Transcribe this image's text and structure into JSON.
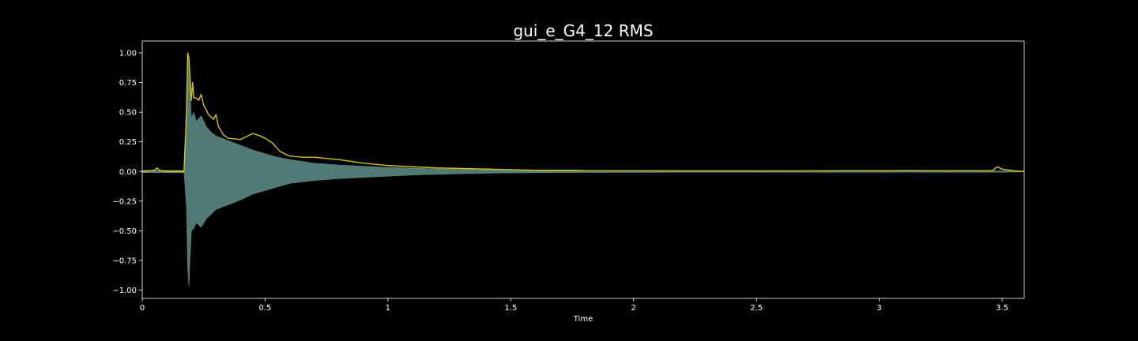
{
  "chart_data": {
    "type": "line",
    "title": "gui_e_G4_12 RMS",
    "xlabel": "Time",
    "ylabel": "",
    "xlim": [
      0,
      3.59
    ],
    "ylim": [
      -1.07,
      1.1
    ],
    "grid": false,
    "x_ticks": [
      {
        "value": 0,
        "label": "0"
      },
      {
        "value": 0.5,
        "label": "0.5"
      },
      {
        "value": 1,
        "label": "1"
      },
      {
        "value": 1.5,
        "label": "1.5"
      },
      {
        "value": 2,
        "label": "2"
      },
      {
        "value": 2.5,
        "label": "2.5"
      },
      {
        "value": 3,
        "label": "3"
      },
      {
        "value": 3.5,
        "label": "3.5"
      }
    ],
    "y_ticks": [
      {
        "value": 1.0,
        "label": "1.00"
      },
      {
        "value": 0.75,
        "label": "0.75"
      },
      {
        "value": 0.5,
        "label": "0.50"
      },
      {
        "value": 0.25,
        "label": "0.25"
      },
      {
        "value": 0.0,
        "label": "0.00"
      },
      {
        "value": -0.25,
        "label": "−0.25"
      },
      {
        "value": -0.5,
        "label": "−0.50"
      },
      {
        "value": -0.75,
        "label": "−0.75"
      },
      {
        "value": -1.0,
        "label": "−1.00"
      }
    ],
    "series": [
      {
        "kind": "waveform-envelope",
        "color": "#5f8f88",
        "x": [
          0,
          0.1,
          0.17,
          0.18,
          0.185,
          0.19,
          0.195,
          0.2,
          0.21,
          0.22,
          0.24,
          0.26,
          0.28,
          0.3,
          0.35,
          0.4,
          0.45,
          0.5,
          0.55,
          0.6,
          0.7,
          0.8,
          0.9,
          1.0,
          1.1,
          1.2,
          1.3,
          1.4,
          1.5,
          1.7,
          2.0,
          2.5,
          3.0,
          3.5,
          3.59
        ],
        "upper": [
          0.01,
          0.01,
          0.01,
          0.3,
          0.92,
          0.97,
          0.65,
          0.45,
          0.5,
          0.42,
          0.47,
          0.38,
          0.33,
          0.3,
          0.26,
          0.22,
          0.18,
          0.15,
          0.12,
          0.1,
          0.07,
          0.055,
          0.045,
          0.035,
          0.028,
          0.022,
          0.017,
          0.013,
          0.01,
          0.008,
          0.006,
          0.005,
          0.005,
          0.005,
          0.003
        ],
        "lower": [
          -0.01,
          -0.01,
          -0.01,
          -0.3,
          -0.8,
          -0.97,
          -0.7,
          -0.5,
          -0.48,
          -0.43,
          -0.47,
          -0.4,
          -0.36,
          -0.32,
          -0.28,
          -0.24,
          -0.19,
          -0.16,
          -0.13,
          -0.1,
          -0.075,
          -0.06,
          -0.05,
          -0.04,
          -0.03,
          -0.024,
          -0.019,
          -0.015,
          -0.012,
          -0.009,
          -0.007,
          -0.006,
          -0.006,
          -0.006,
          -0.003
        ]
      },
      {
        "kind": "line",
        "color": "#d4c41a",
        "x": [
          0,
          0.05,
          0.06,
          0.07,
          0.1,
          0.17,
          0.18,
          0.185,
          0.19,
          0.2,
          0.205,
          0.21,
          0.22,
          0.23,
          0.24,
          0.25,
          0.27,
          0.29,
          0.3,
          0.31,
          0.33,
          0.35,
          0.4,
          0.43,
          0.45,
          0.48,
          0.5,
          0.53,
          0.56,
          0.6,
          0.65,
          0.7,
          0.75,
          0.8,
          0.9,
          1.0,
          1.2,
          1.4,
          1.6,
          1.77,
          1.8,
          2.0,
          2.2,
          2.5,
          2.8,
          3.0,
          3.1,
          3.3,
          3.46,
          3.48,
          3.5,
          3.55,
          3.59
        ],
        "y": [
          0.0,
          0.01,
          0.03,
          0.01,
          0.0,
          0.0,
          0.5,
          1.0,
          0.96,
          0.6,
          0.75,
          0.62,
          0.62,
          0.6,
          0.65,
          0.56,
          0.48,
          0.44,
          0.48,
          0.38,
          0.31,
          0.28,
          0.27,
          0.3,
          0.32,
          0.3,
          0.28,
          0.24,
          0.17,
          0.13,
          0.12,
          0.12,
          0.11,
          0.1,
          0.07,
          0.05,
          0.03,
          0.02,
          0.01,
          0.01,
          0.006,
          0.006,
          0.005,
          0.005,
          0.006,
          0.006,
          0.008,
          0.006,
          0.006,
          0.04,
          0.02,
          0.005,
          0.0
        ]
      }
    ]
  }
}
